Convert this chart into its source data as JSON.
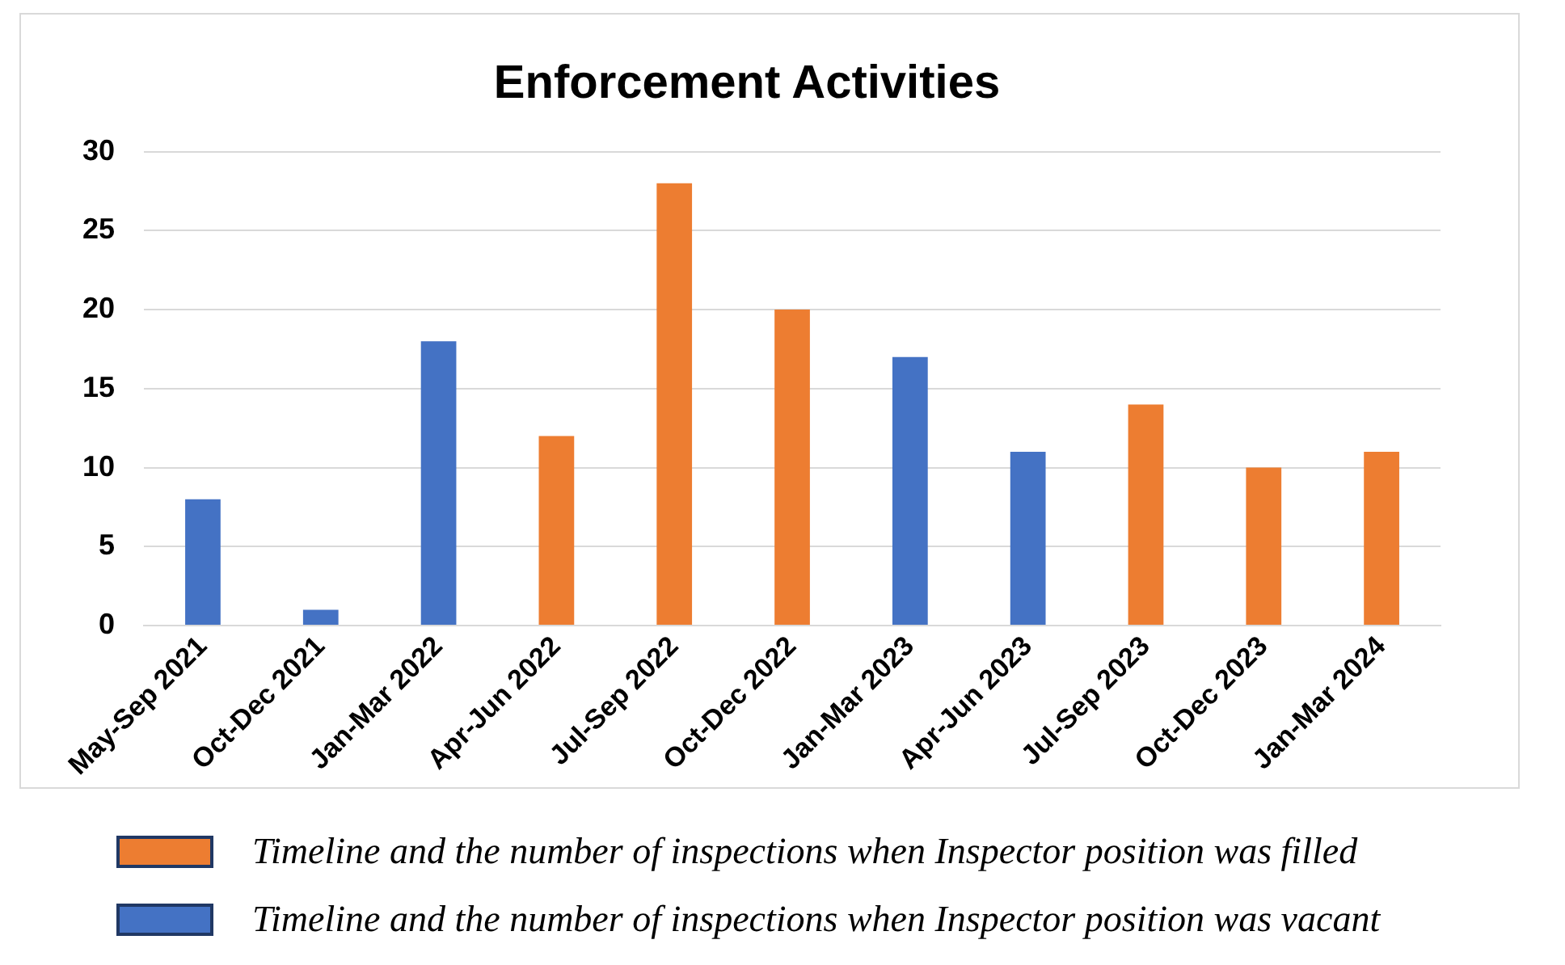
{
  "chart_data": {
    "type": "bar",
    "title": "Enforcement Activities",
    "categories": [
      "May-Sep 2021",
      "Oct-Dec 2021",
      "Jan-Mar 2022",
      "Apr-Jun 2022",
      "Jul-Sep 2022",
      "Oct-Dec 2022",
      "Jan-Mar 2023",
      "Apr-Jun 2023",
      "Jul-Sep 2023",
      "Oct-Dec 2023",
      "Jan-Mar 2024"
    ],
    "series": [
      {
        "name": "Timeline and the number of inspections when Inspector position was filled",
        "color": "#ed7d31",
        "values": [
          null,
          null,
          null,
          12,
          28,
          20,
          null,
          null,
          14,
          10,
          11
        ]
      },
      {
        "name": "Timeline and the number of inspections when Inspector position was vacant",
        "color": "#4472c4",
        "values": [
          8,
          1,
          18,
          null,
          null,
          null,
          17,
          11,
          null,
          null,
          null
        ]
      }
    ],
    "ylim": [
      0,
      30
    ],
    "yticks": [
      0,
      5,
      10,
      15,
      20,
      25,
      30
    ],
    "grid": "y",
    "legend": "bottom"
  }
}
